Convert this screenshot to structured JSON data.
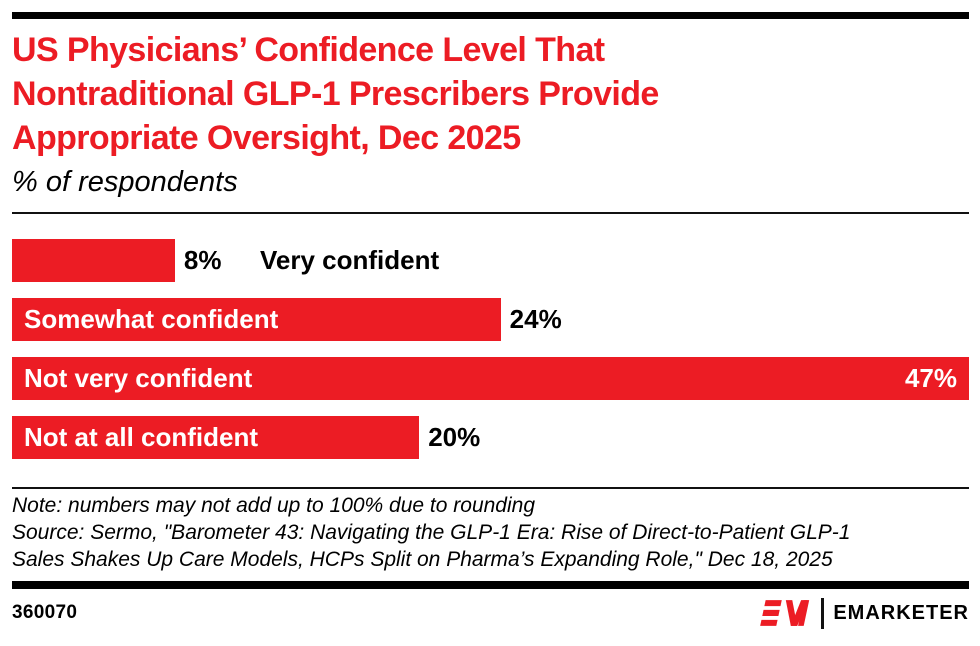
{
  "header": {
    "title_lines": [
      "US Physicians’ Confidence Level That",
      "Nontraditional GLP-1 Prescribers Provide",
      "Appropriate Oversight, Dec 2025"
    ],
    "subtitle": "% of respondents"
  },
  "chart_data": {
    "type": "bar",
    "orientation": "horizontal",
    "title": "US Physicians’ Confidence Level That Nontraditional GLP-1 Prescribers Provide Appropriate Oversight, Dec 2025",
    "subtitle": "% of respondents",
    "categories": [
      "Very confident",
      "Somewhat confident",
      "Not very confident",
      "Not at all confident"
    ],
    "values": [
      8,
      24,
      47,
      20
    ],
    "value_labels": [
      "8%",
      "24%",
      "47%",
      "20%"
    ],
    "unit": "%",
    "xlim": [
      0,
      47
    ],
    "bar_color": "#EC1C24",
    "grid": false,
    "legend": false,
    "layout_hint": "category label inside bar (white) when it fits, value after bar end, 47% value inside bar right-aligned"
  },
  "footer": {
    "note": "Note: numbers may not add up to 100% due to rounding",
    "source_lines": [
      "Source: Sermo, \"Barometer 43: Navigating the GLP-1 Era: Rise of Direct-to-Patient GLP-1",
      "Sales Shakes Up Care Models, HCPs Split on Pharma’s Expanding Role,\" Dec 18, 2025"
    ],
    "chart_id": "360070",
    "brand": "EMARKETER"
  },
  "colors": {
    "accent_red": "#EC1C24",
    "rule_black": "#000000",
    "text_black": "#000000",
    "inside_label_white": "#FFFFFF"
  }
}
